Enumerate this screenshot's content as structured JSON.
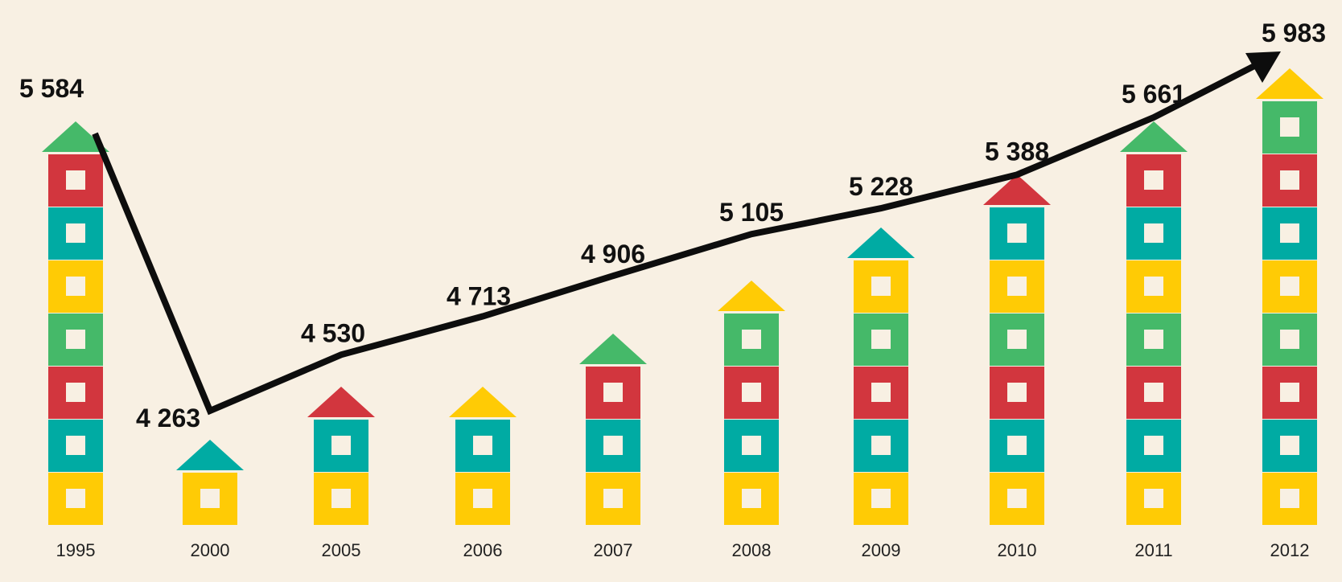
{
  "chart_data": {
    "type": "bar",
    "categories": [
      "1995",
      "2000",
      "2005",
      "2006",
      "2007",
      "2008",
      "2009",
      "2010",
      "2011",
      "2012"
    ],
    "values": [
      5584,
      4263,
      4530,
      4713,
      4906,
      5105,
      5228,
      5388,
      5661,
      5983
    ],
    "value_labels": [
      "5 584",
      "4 263",
      "4 530",
      "4 713",
      "4 906",
      "5 105",
      "5 228",
      "5 388",
      "5 661",
      "5 983"
    ],
    "block_counts": [
      7,
      1,
      2,
      2,
      3,
      4,
      5,
      6,
      7,
      8
    ],
    "block_colors_bottom_up": [
      "yellow",
      "teal",
      "red",
      "green",
      "yellow",
      "teal",
      "red",
      "green"
    ],
    "roof_colors": [
      "green",
      "teal",
      "red",
      "yellow",
      "green",
      "yellow",
      "teal",
      "red",
      "green",
      "yellow"
    ],
    "colors": {
      "background": "#f8f0e3",
      "yellow": "#ffcb05",
      "teal": "#00aba3",
      "red": "#d2363e",
      "green": "#45b969",
      "window": "#f8f0e3",
      "line": "#0d0d0d"
    },
    "line_overlay": true,
    "arrow_end": true,
    "grid": false,
    "legend": "none",
    "title": "",
    "xlabel": "",
    "ylabel": ""
  }
}
